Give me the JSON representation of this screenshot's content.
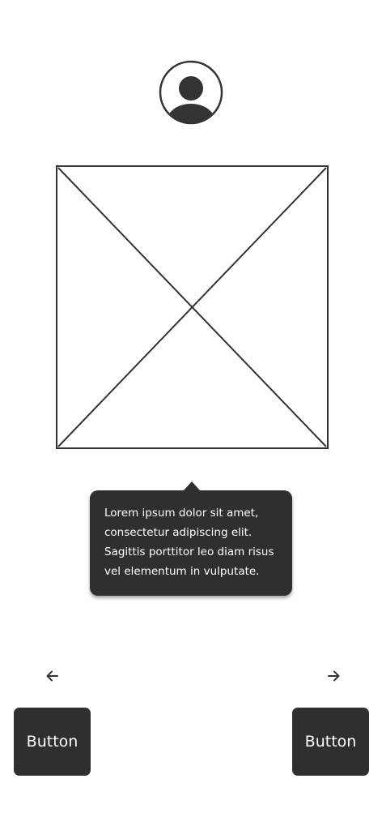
{
  "avatar": {
    "icon": "user-avatar-icon"
  },
  "image": {
    "icon": "image-placeholder-icon"
  },
  "tooltip": {
    "lines": [
      "Lorem ipsum dolor sit amet,",
      "consectetur adipiscing elit.",
      "Sagittis porttitor leo diam risus",
      "vel elementum in vulputate."
    ]
  },
  "nav": {
    "prev_icon": "arrow-left-icon",
    "next_icon": "arrow-right-icon"
  },
  "buttons": {
    "left_label": "Button",
    "right_label": "Button"
  },
  "colors": {
    "dark": "#2f2f2f",
    "stroke": "#333333",
    "background": "#ffffff",
    "text_on_dark": "#ffffff"
  }
}
